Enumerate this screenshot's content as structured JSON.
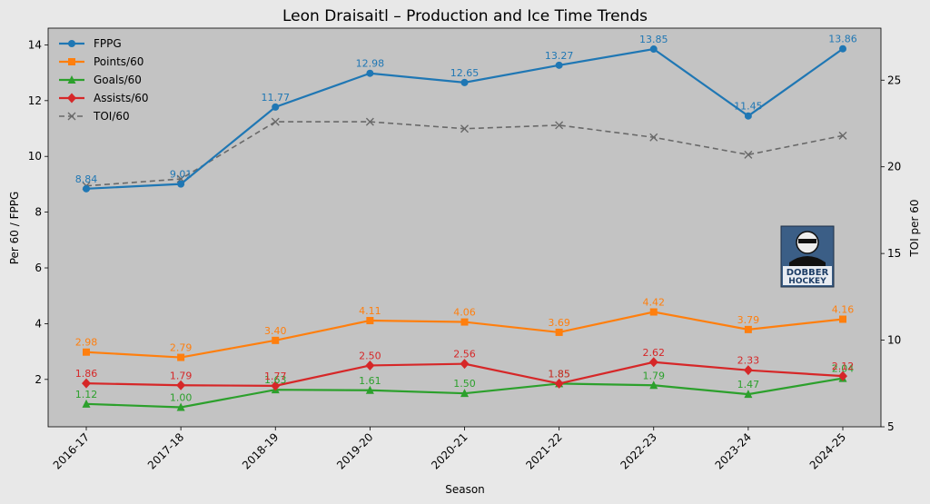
{
  "chart_data": {
    "type": "line",
    "title": "Leon Draisaitl – Production and Ice Time Trends",
    "xlabel": "Season",
    "ylabel_left": "Per 60 / FPPG",
    "ylabel_right": "TOI per 60",
    "categories": [
      "2016-17",
      "2017-18",
      "2018-19",
      "2019-20",
      "2020-21",
      "2021-22",
      "2022-23",
      "2023-24",
      "2024-25"
    ],
    "ylim_left": [
      0.3,
      14.6
    ],
    "ylim_right": [
      5,
      28
    ],
    "yticks_left": [
      2,
      4,
      6,
      8,
      10,
      12,
      14
    ],
    "yticks_right": [
      5,
      10,
      15,
      20,
      25
    ],
    "legend_position": "upper-left",
    "series": [
      {
        "name": "FPPG",
        "axis": "left",
        "color": "#1f77b4",
        "marker": "circle",
        "dashed": false,
        "labels": true,
        "values": [
          8.84,
          9.01,
          11.77,
          12.98,
          12.65,
          13.27,
          13.85,
          11.45,
          13.86
        ],
        "label_text": [
          "8.84",
          "9.01",
          "11.77",
          "12.98",
          "12.65",
          "13.27",
          "13.85",
          "11.45",
          "13.86"
        ]
      },
      {
        "name": "Points/60",
        "axis": "left",
        "color": "#ff7f0e",
        "marker": "square",
        "dashed": false,
        "labels": true,
        "values": [
          2.98,
          2.79,
          3.4,
          4.11,
          4.06,
          3.69,
          4.42,
          3.79,
          4.16
        ],
        "label_text": [
          "2.98",
          "2.79",
          "3.40",
          "4.11",
          "4.06",
          "3.69",
          "4.42",
          "3.79",
          "4.16"
        ]
      },
      {
        "name": "Goals/60",
        "axis": "left",
        "color": "#2ca02c",
        "marker": "triangle",
        "dashed": false,
        "labels": true,
        "values": [
          1.12,
          1.0,
          1.63,
          1.61,
          1.5,
          1.85,
          1.79,
          1.47,
          2.04
        ],
        "label_text": [
          "1.12",
          "1.00",
          "1.63",
          "1.61",
          "1.50",
          "1.85",
          "1.79",
          "1.47",
          "2.04"
        ]
      },
      {
        "name": "Assists/60",
        "axis": "left",
        "color": "#d62728",
        "marker": "diamond",
        "dashed": false,
        "labels": true,
        "values": [
          1.86,
          1.79,
          1.77,
          2.5,
          2.56,
          1.85,
          2.62,
          2.33,
          2.12
        ],
        "label_text": [
          "1.86",
          "1.79",
          "1.77",
          "2.50",
          "2.56",
          "1.85",
          "2.62",
          "2.33",
          "2.12"
        ]
      },
      {
        "name": "TOI/60",
        "axis": "right",
        "color": "#696969",
        "marker": "x",
        "dashed": true,
        "labels": false,
        "values": [
          18.9,
          19.3,
          22.6,
          22.6,
          22.2,
          22.4,
          21.7,
          20.7,
          21.8
        ]
      }
    ],
    "logo": {
      "text_line1": "DOBBER",
      "text_line2": "HOCKEY"
    }
  }
}
